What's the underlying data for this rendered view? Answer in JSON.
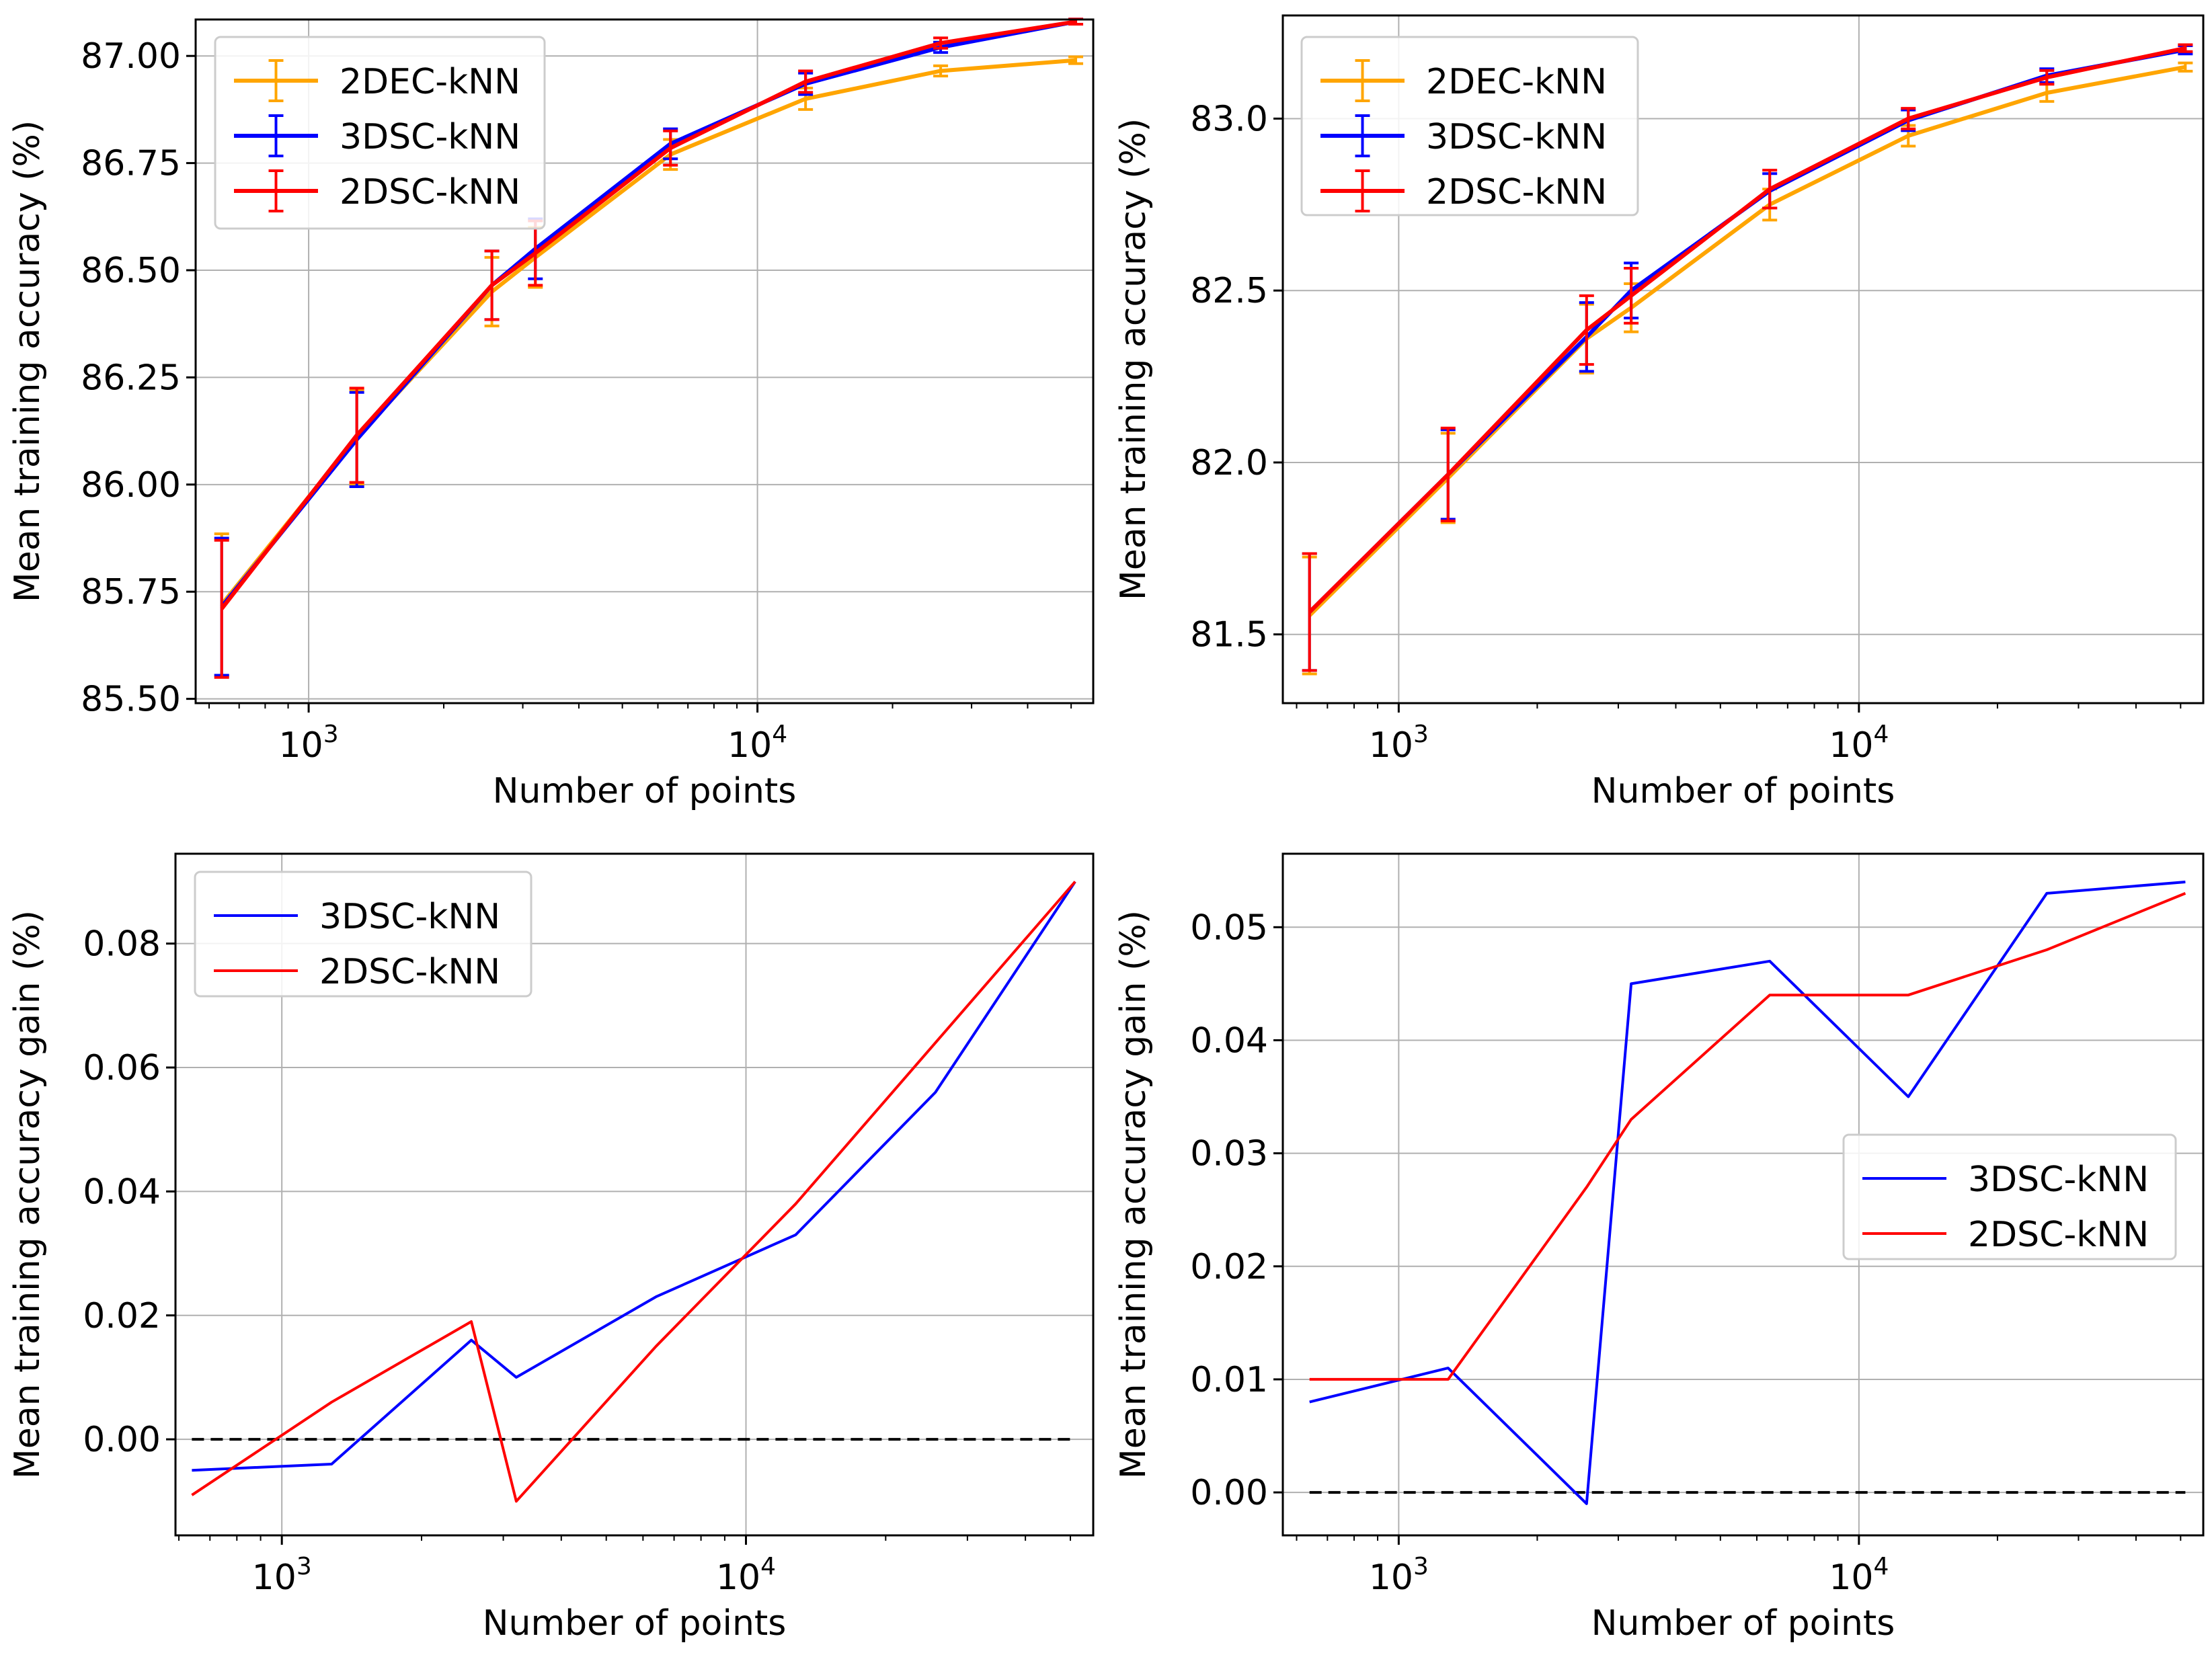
{
  "chart_data": [
    {
      "type": "line",
      "panel": "top-left",
      "xscale": "log",
      "xlabel": "Number of points",
      "ylabel": "Mean training accuracy (%)",
      "xlim": [
        560,
        56000
      ],
      "ylim": [
        85.49,
        87.085
      ],
      "yticks": [
        85.5,
        85.75,
        86.0,
        86.25,
        86.5,
        86.75,
        87.0
      ],
      "ytick_labels": [
        "85.50",
        "85.75",
        "86.00",
        "86.25",
        "86.50",
        "86.75",
        "87.00"
      ],
      "xticks": [
        1000,
        10000
      ],
      "xtick_labels": [
        {
          "base": "10",
          "exp": "3"
        },
        {
          "base": "10",
          "exp": "4"
        }
      ],
      "grid": true,
      "legend_loc": "upper left",
      "errorbars": true,
      "x": [
        640,
        1280,
        2560,
        3200,
        6400,
        12800,
        25600,
        51200
      ],
      "series": [
        {
          "name": "2DEC-kNN",
          "color": "#ffa500",
          "values": [
            85.72,
            86.11,
            86.45,
            86.53,
            86.77,
            86.9,
            86.965,
            86.99
          ],
          "errors": [
            0.165,
            0.11,
            0.08,
            0.07,
            0.035,
            0.025,
            0.012,
            0.008
          ]
        },
        {
          "name": "3DSC-kNN",
          "color": "#0000ff",
          "values": [
            85.715,
            86.105,
            86.465,
            86.55,
            86.795,
            86.935,
            87.02,
            87.08
          ],
          "errors": [
            0.16,
            0.11,
            0.08,
            0.07,
            0.035,
            0.025,
            0.012,
            0.006
          ]
        },
        {
          "name": "2DSC-kNN",
          "color": "#ff0000",
          "values": [
            85.71,
            86.115,
            86.465,
            86.54,
            86.785,
            86.94,
            87.03,
            87.08
          ],
          "errors": [
            0.16,
            0.11,
            0.08,
            0.075,
            0.04,
            0.025,
            0.012,
            0.006
          ]
        }
      ]
    },
    {
      "type": "line",
      "panel": "top-right",
      "xscale": "log",
      "xlabel": "Number of points",
      "ylabel": "Mean training accuracy (%)",
      "xlim": [
        560,
        56000
      ],
      "ylim": [
        81.3,
        83.3
      ],
      "yticks": [
        81.5,
        82.0,
        82.5,
        83.0
      ],
      "ytick_labels": [
        "81.5",
        "82.0",
        "82.5",
        "83.0"
      ],
      "xticks": [
        1000,
        10000
      ],
      "xtick_labels": [
        {
          "base": "10",
          "exp": "3"
        },
        {
          "base": "10",
          "exp": "4"
        }
      ],
      "grid": true,
      "legend_loc": "upper left",
      "errorbars": true,
      "x": [
        640,
        1280,
        2560,
        3200,
        6400,
        12800,
        25600,
        51200
      ],
      "series": [
        {
          "name": "2DEC-kNN",
          "color": "#ffa500",
          "values": [
            81.555,
            81.955,
            82.36,
            82.45,
            82.75,
            82.95,
            83.075,
            83.15
          ],
          "errors": [
            0.17,
            0.13,
            0.1,
            0.07,
            0.045,
            0.03,
            0.025,
            0.012
          ]
        },
        {
          "name": "3DSC-kNN",
          "color": "#0000ff",
          "values": [
            81.565,
            81.965,
            82.365,
            82.5,
            82.79,
            82.995,
            83.125,
            83.2
          ],
          "errors": [
            0.17,
            0.13,
            0.1,
            0.08,
            0.05,
            0.03,
            0.02,
            0.012
          ]
        },
        {
          "name": "2DSC-kNN",
          "color": "#ff0000",
          "values": [
            81.565,
            81.965,
            82.385,
            82.485,
            82.795,
            83.0,
            83.12,
            83.205
          ],
          "errors": [
            0.17,
            0.135,
            0.1,
            0.08,
            0.055,
            0.03,
            0.02,
            0.01
          ]
        }
      ]
    },
    {
      "type": "line",
      "panel": "bottom-left",
      "xscale": "log",
      "xlabel": "Number of points",
      "ylabel": "Mean training accuracy gain (%)",
      "xlim": [
        590,
        56000
      ],
      "ylim": [
        -0.0155,
        0.0945
      ],
      "yticks": [
        0.0,
        0.02,
        0.04,
        0.06,
        0.08
      ],
      "ytick_labels": [
        "0.00",
        "0.02",
        "0.04",
        "0.06",
        "0.08"
      ],
      "xticks": [
        1000,
        10000
      ],
      "xtick_labels": [
        {
          "base": "10",
          "exp": "3"
        },
        {
          "base": "10",
          "exp": "4"
        }
      ],
      "grid": true,
      "legend_loc": "upper left",
      "baseline": 0,
      "x": [
        640,
        1280,
        2560,
        3200,
        6400,
        12800,
        25600,
        51200
      ],
      "series": [
        {
          "name": "3DSC-kNN",
          "color": "#0000ff",
          "values": [
            -0.005,
            -0.004,
            0.016,
            0.01,
            0.023,
            0.033,
            0.056,
            0.09
          ]
        },
        {
          "name": "2DSC-kNN",
          "color": "#ff0000",
          "values": [
            -0.009,
            0.006,
            0.019,
            -0.01,
            0.015,
            0.038,
            0.064,
            0.09
          ]
        }
      ]
    },
    {
      "type": "line",
      "panel": "bottom-right",
      "xscale": "log",
      "xlabel": "Number of points",
      "ylabel": "Mean training accuracy gain (%)",
      "xlim": [
        560,
        56000
      ],
      "ylim": [
        -0.0038,
        0.0565
      ],
      "yticks": [
        0.0,
        0.01,
        0.02,
        0.03,
        0.04,
        0.05
      ],
      "ytick_labels": [
        "0.00",
        "0.01",
        "0.02",
        "0.03",
        "0.04",
        "0.05"
      ],
      "xticks": [
        1000,
        10000
      ],
      "xtick_labels": [
        {
          "base": "10",
          "exp": "3"
        },
        {
          "base": "10",
          "exp": "4"
        }
      ],
      "grid": true,
      "legend_loc": "center right",
      "baseline": 0,
      "x": [
        640,
        1280,
        2560,
        3200,
        6400,
        12800,
        25600,
        51200
      ],
      "series": [
        {
          "name": "3DSC-kNN",
          "color": "#0000ff",
          "values": [
            0.008,
            0.011,
            -0.001,
            0.045,
            0.047,
            0.035,
            0.053,
            0.054
          ]
        },
        {
          "name": "2DSC-kNN",
          "color": "#ff0000",
          "values": [
            0.01,
            0.01,
            0.027,
            0.033,
            0.044,
            0.044,
            0.048,
            0.053
          ]
        }
      ]
    }
  ]
}
